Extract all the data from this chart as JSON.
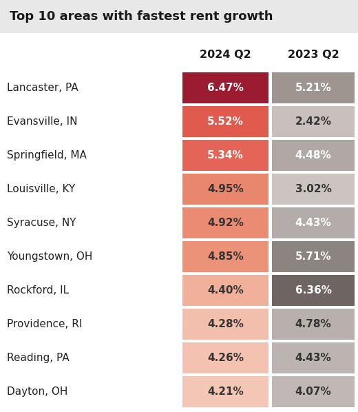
{
  "title": "Top 10 areas with fastest rent growth",
  "col1_header": "2024 Q2",
  "col2_header": "2023 Q2",
  "areas": [
    "Lancaster, PA",
    "Evansville, IN",
    "Springfield, MA",
    "Louisville, KY",
    "Syracuse, NY",
    "Youngstown, OH",
    "Rockford, IL",
    "Providence, RI",
    "Reading, PA",
    "Dayton, OH"
  ],
  "val2024": [
    "6.47%",
    "5.52%",
    "5.34%",
    "4.95%",
    "4.92%",
    "4.85%",
    "4.40%",
    "4.28%",
    "4.26%",
    "4.21%"
  ],
  "val2023": [
    "5.21%",
    "2.42%",
    "4.48%",
    "3.02%",
    "4.43%",
    "5.71%",
    "6.36%",
    "4.78%",
    "4.43%",
    "4.07%"
  ],
  "colors2024": [
    "#9b1b30",
    "#e05a4e",
    "#e46558",
    "#e8866e",
    "#ea8b74",
    "#eb9278",
    "#f0b09a",
    "#f2bfad",
    "#f3c2b0",
    "#f4c6b5"
  ],
  "colors2023": [
    "#9e9490",
    "#c8c0bc",
    "#b0a8a4",
    "#ccc4c0",
    "#b4acaa",
    "#8c8480",
    "#6e6462",
    "#b8b0ac",
    "#bcb4b0",
    "#c0b8b4"
  ],
  "text2024": [
    "#ffffff",
    "#ffffff",
    "#ffffff",
    "#333333",
    "#333333",
    "#333333",
    "#333333",
    "#333333",
    "#333333",
    "#333333"
  ],
  "text2023": [
    "#ffffff",
    "#333333",
    "#ffffff",
    "#333333",
    "#ffffff",
    "#ffffff",
    "#ffffff",
    "#333333",
    "#333333",
    "#333333"
  ],
  "title_bg": "#e8e8e8",
  "bg_color": "#ffffff",
  "title_fontsize": 13,
  "header_fontsize": 11.5,
  "row_fontsize": 11,
  "area_fontsize": 11
}
